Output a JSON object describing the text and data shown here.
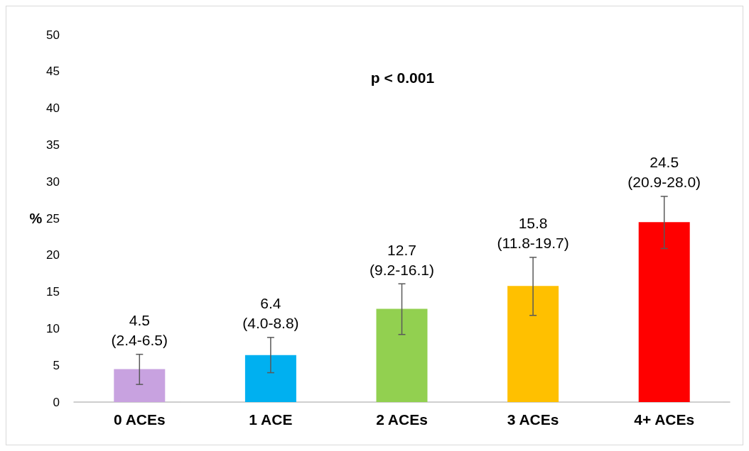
{
  "chart_data": {
    "type": "bar",
    "ylabel": "%",
    "annotations": [
      "p < 0.001"
    ],
    "categories": [
      "0 ACEs",
      "1 ACE",
      "2 ACEs",
      "3 ACEs",
      "4+ ACEs"
    ],
    "values": [
      4.5,
      6.4,
      12.7,
      15.8,
      24.5
    ],
    "colors": [
      "#c8a2e0",
      "#00b0f0",
      "#92d050",
      "#ffc000",
      "#ff0000"
    ],
    "errors": [
      [
        2.4,
        6.5
      ],
      [
        4.0,
        8.8
      ],
      [
        9.2,
        16.1
      ],
      [
        11.8,
        19.7
      ],
      [
        20.9,
        28.0
      ]
    ],
    "value_labels": [
      "4.5\n(2.4-6.5)",
      "6.4\n(4.0-8.8)",
      "12.7\n(9.2-16.1)",
      "15.8\n(11.8-19.7)",
      "24.5\n(20.9-28.0)"
    ],
    "ylim": [
      0,
      50
    ],
    "yticks": [
      0,
      5,
      10,
      15,
      20,
      25,
      30,
      35,
      40,
      45,
      50
    ],
    "grid": false
  }
}
